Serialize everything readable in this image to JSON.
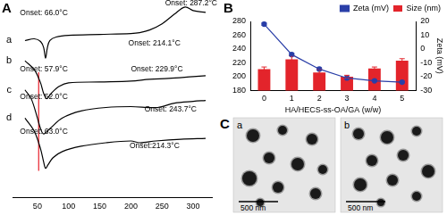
{
  "chart_data": [
    {
      "type": "line",
      "panel": "A",
      "series": [
        {
          "name": "a",
          "color": "#000000",
          "x": [
            30,
            45,
            55,
            60,
            63,
            66,
            70,
            80,
            100,
            150,
            200,
            214,
            230,
            250,
            270,
            287,
            300,
            320
          ],
          "values": [
            178,
            180,
            177,
            170,
            158,
            170,
            178,
            182,
            184,
            185,
            186,
            187,
            190,
            197,
            208,
            216,
            212,
            210
          ]
        },
        {
          "name": "b",
          "color": "#000000",
          "x": [
            30,
            45,
            55,
            60,
            65,
            72,
            85,
            100,
            150,
            200,
            230,
            260,
            300,
            320
          ],
          "values": [
            155,
            145,
            130,
            118,
            112,
            118,
            126,
            130,
            131,
            132,
            134,
            135,
            137,
            138
          ]
        },
        {
          "name": "c",
          "color": "#000000",
          "x": [
            30,
            40,
            50,
            55,
            60,
            70,
            90,
            120,
            160,
            200,
            243,
            270,
            300,
            320
          ],
          "values": [
            122,
            112,
            90,
            78,
            72,
            78,
            90,
            98,
            102,
            103,
            102,
            107,
            109,
            110
          ]
        },
        {
          "name": "d",
          "color": "#000000",
          "x": [
            30,
            45,
            55,
            60,
            63,
            67,
            75,
            90,
            120,
            160,
            200,
            214,
            240,
            280,
            320
          ],
          "values": [
            90,
            75,
            55,
            40,
            33,
            37,
            45,
            52,
            58,
            62,
            64,
            62,
            64,
            66,
            67
          ]
        },
        {
          "color": "#e8202a",
          "x": [
            52,
            52
          ],
          "values": [
            30,
            142
          ]
        }
      ],
      "annotations": [
        "Onset: 66.0°C",
        "Onset: 214.1°C",
        "Onset: 287.2°C",
        "Onset: 57.9°C",
        "Onset: 229.9°C",
        "Onset: 52.0°C",
        "Onset: 243.7°C",
        "Onset: 63.0°C",
        "Onset:214.3°C"
      ],
      "xlim": [
        10,
        330
      ],
      "xticks": [
        50,
        100,
        150,
        200,
        250,
        300
      ],
      "ylim": [
        0,
        220
      ],
      "tick_labels": "x",
      "grid": false
    },
    {
      "type": "bar",
      "panel": "B",
      "categories": [
        "0",
        "1",
        "2",
        "3",
        "4",
        "5"
      ],
      "x_label": "HA/HECS-ss-OA/GA (w/w)",
      "y2_label": "Zeta (mV)",
      "series": [
        {
          "name": "Size (nm)",
          "type": "bar",
          "color": "#e3242b",
          "values": [
            211,
            225,
            206,
            200,
            212,
            223
          ],
          "errors": [
            3,
            5,
            4,
            2,
            2,
            3
          ]
        },
        {
          "name": "Zeta (mV)",
          "type": "line",
          "axis": "y2",
          "color": "#2a3fa8",
          "marker": "circle",
          "values": [
            18,
            -4,
            -14.5,
            -21,
            -23,
            -24
          ],
          "errors": [
            0.8,
            0.8,
            0.8,
            0.6,
            0.6,
            0.6
          ]
        }
      ],
      "ylim": [
        180,
        280
      ],
      "yticks": [
        180,
        200,
        220,
        240,
        260,
        280
      ],
      "y2lim": [
        -30,
        20
      ],
      "y2ticks": [
        -30,
        -20,
        -10,
        0,
        10,
        20
      ],
      "legend": "top-right",
      "grid": false
    }
  ],
  "images": {
    "panel": "C",
    "items": [
      {
        "label": "a",
        "scale_bar": "500 nm"
      },
      {
        "label": "b",
        "scale_bar": "500 nm"
      }
    ]
  }
}
